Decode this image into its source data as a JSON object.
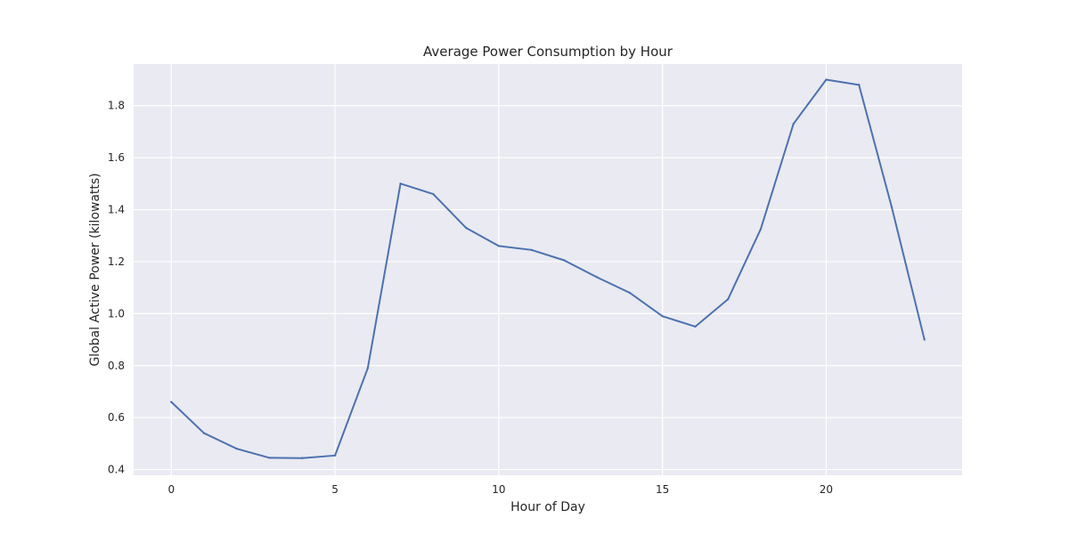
{
  "chart_data": {
    "type": "line",
    "title": "Average Power Consumption by Hour",
    "xlabel": "Hour of Day",
    "ylabel": "Global Active Power (kilowatts)",
    "x": [
      0,
      1,
      2,
      3,
      4,
      5,
      6,
      7,
      8,
      9,
      10,
      11,
      12,
      13,
      14,
      15,
      16,
      17,
      18,
      19,
      20,
      21,
      22,
      23
    ],
    "series": [
      {
        "name": "",
        "values": [
          0.66,
          0.54,
          0.48,
          0.445,
          0.444,
          0.454,
          0.79,
          1.5,
          1.46,
          1.33,
          1.26,
          1.245,
          1.205,
          1.14,
          1.08,
          0.99,
          0.95,
          1.055,
          1.325,
          1.73,
          1.9,
          1.88,
          1.41,
          0.9
        ]
      }
    ],
    "xlim": [
      -1.15,
      24.15
    ],
    "ylim": [
      0.378,
      1.96
    ],
    "xticks": [
      0,
      5,
      10,
      15,
      20
    ],
    "xtick_labels": [
      "0",
      "5",
      "10",
      "15",
      "20"
    ],
    "yticks": [
      0.4,
      0.6,
      0.8,
      1.0,
      1.2,
      1.4,
      1.6,
      1.8
    ],
    "ytick_labels": [
      "0.4",
      "0.6",
      "0.8",
      "1.0",
      "1.2",
      "1.4",
      "1.6",
      "1.8"
    ],
    "grid": true,
    "legend": "none",
    "colors": {
      "line": "#4c72b0",
      "plot_background": "#eaeaf2",
      "grid": "#ffffff"
    }
  }
}
